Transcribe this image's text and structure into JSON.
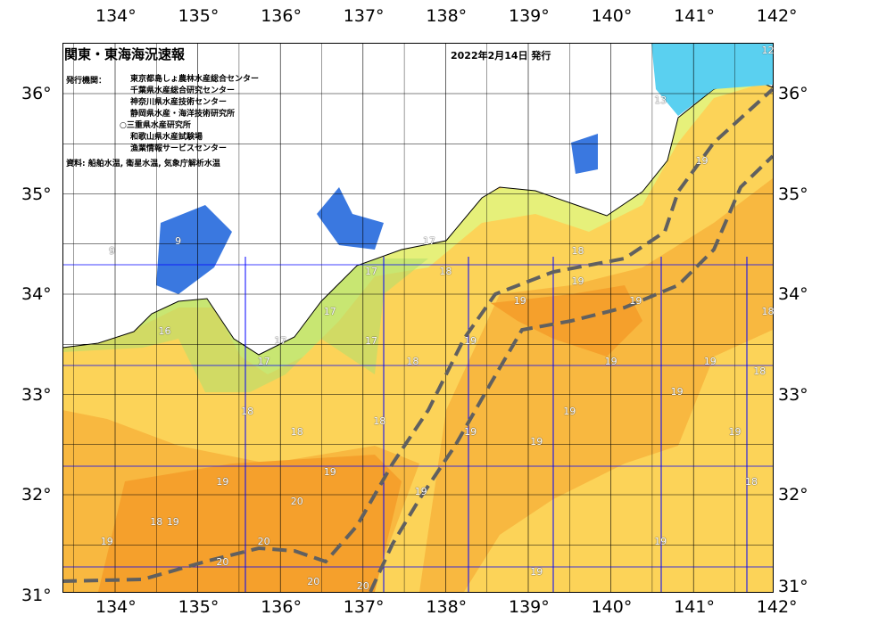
{
  "title": "関東・東海海況速報",
  "issue_date": "2022年2月14日 発行",
  "issuer_label": "発行機関：",
  "institutions": [
    "東京都島しょ農林水産総合センター",
    "千葉県水産総合研究センター",
    "神奈川県水産技術センター",
    "静岡県水産・海洋技術研究所",
    "○三重県水産研究所",
    "和歌山県水産試験場",
    "漁業情報サービスセンター"
  ],
  "sources": "資料: 船舶水温, 衛星水温, 気象庁解析水温",
  "lon_ticks": [
    "134°",
    "135°",
    "136°",
    "137°",
    "138°",
    "139°",
    "140°",
    "141°",
    "142°"
  ],
  "lat_ticks": [
    "36°",
    "35°",
    "34°",
    "33°",
    "32°",
    "31°"
  ],
  "colors": {
    "warm": "#f5a02c",
    "mid": "#f8b840",
    "sea": "#fcd358",
    "coastal": "#e6f07a",
    "green": "#b4e06c",
    "bay": "#3a78e0",
    "grid": "#0000ff",
    "kuroshio": "#606060"
  },
  "contour_labels": [
    {
      "t": "20",
      "lon": 136.2,
      "lat": 31.9
    },
    {
      "t": "20",
      "lon": 135.8,
      "lat": 31.5
    },
    {
      "t": "20",
      "lon": 135.3,
      "lat": 31.3
    },
    {
      "t": "20",
      "lon": 136.4,
      "lat": 31.1
    },
    {
      "t": "20",
      "lon": 137.0,
      "lat": 31.0
    },
    {
      "t": "19",
      "lon": 135.3,
      "lat": 32.1
    },
    {
      "t": "19",
      "lon": 133.9,
      "lat": 31.5
    },
    {
      "t": "19",
      "lon": 134.7,
      "lat": 31.7
    },
    {
      "t": "19",
      "lon": 136.6,
      "lat": 32.2
    },
    {
      "t": "19",
      "lon": 137.7,
      "lat": 32.0
    },
    {
      "t": "19",
      "lon": 138.3,
      "lat": 32.6
    },
    {
      "t": "19",
      "lon": 139.1,
      "lat": 32.5
    },
    {
      "t": "19",
      "lon": 139.5,
      "lat": 32.8
    },
    {
      "t": "19",
      "lon": 140.0,
      "lat": 33.3
    },
    {
      "t": "19",
      "lon": 140.3,
      "lat": 33.9
    },
    {
      "t": "19",
      "lon": 140.8,
      "lat": 33.0
    },
    {
      "t": "19",
      "lon": 141.2,
      "lat": 33.3
    },
    {
      "t": "19",
      "lon": 141.5,
      "lat": 32.6
    },
    {
      "t": "19",
      "lon": 140.6,
      "lat": 31.5
    },
    {
      "t": "19",
      "lon": 139.1,
      "lat": 31.2
    },
    {
      "t": "19",
      "lon": 138.3,
      "lat": 33.5
    },
    {
      "t": "19",
      "lon": 138.9,
      "lat": 33.9
    },
    {
      "t": "19",
      "lon": 139.6,
      "lat": 34.1
    },
    {
      "t": "19",
      "lon": 141.1,
      "lat": 35.3
    },
    {
      "t": "18",
      "lon": 135.6,
      "lat": 32.8
    },
    {
      "t": "18",
      "lon": 136.2,
      "lat": 32.6
    },
    {
      "t": "18",
      "lon": 137.2,
      "lat": 32.7
    },
    {
      "t": "18",
      "lon": 137.6,
      "lat": 33.3
    },
    {
      "t": "18",
      "lon": 138.0,
      "lat": 34.2
    },
    {
      "t": "18",
      "lon": 139.6,
      "lat": 34.4
    },
    {
      "t": "18",
      "lon": 141.8,
      "lat": 33.2
    },
    {
      "t": "18",
      "lon": 141.9,
      "lat": 33.8
    },
    {
      "t": "18",
      "lon": 141.7,
      "lat": 32.1
    },
    {
      "t": "18",
      "lon": 134.5,
      "lat": 31.7
    },
    {
      "t": "17",
      "lon": 136.0,
      "lat": 33.5
    },
    {
      "t": "17",
      "lon": 136.6,
      "lat": 33.8
    },
    {
      "t": "17",
      "lon": 137.1,
      "lat": 33.5
    },
    {
      "t": "17",
      "lon": 137.1,
      "lat": 34.2
    },
    {
      "t": "17",
      "lon": 137.8,
      "lat": 34.5
    },
    {
      "t": "17",
      "lon": 135.8,
      "lat": 33.3
    },
    {
      "t": "16",
      "lon": 134.6,
      "lat": 33.6
    },
    {
      "t": "9",
      "lon": 134.0,
      "lat": 34.4
    },
    {
      "t": "9",
      "lon": 134.8,
      "lat": 34.5
    },
    {
      "t": "13",
      "lon": 140.6,
      "lat": 35.9
    },
    {
      "t": "12",
      "lon": 141.9,
      "lat": 36.4
    }
  ]
}
